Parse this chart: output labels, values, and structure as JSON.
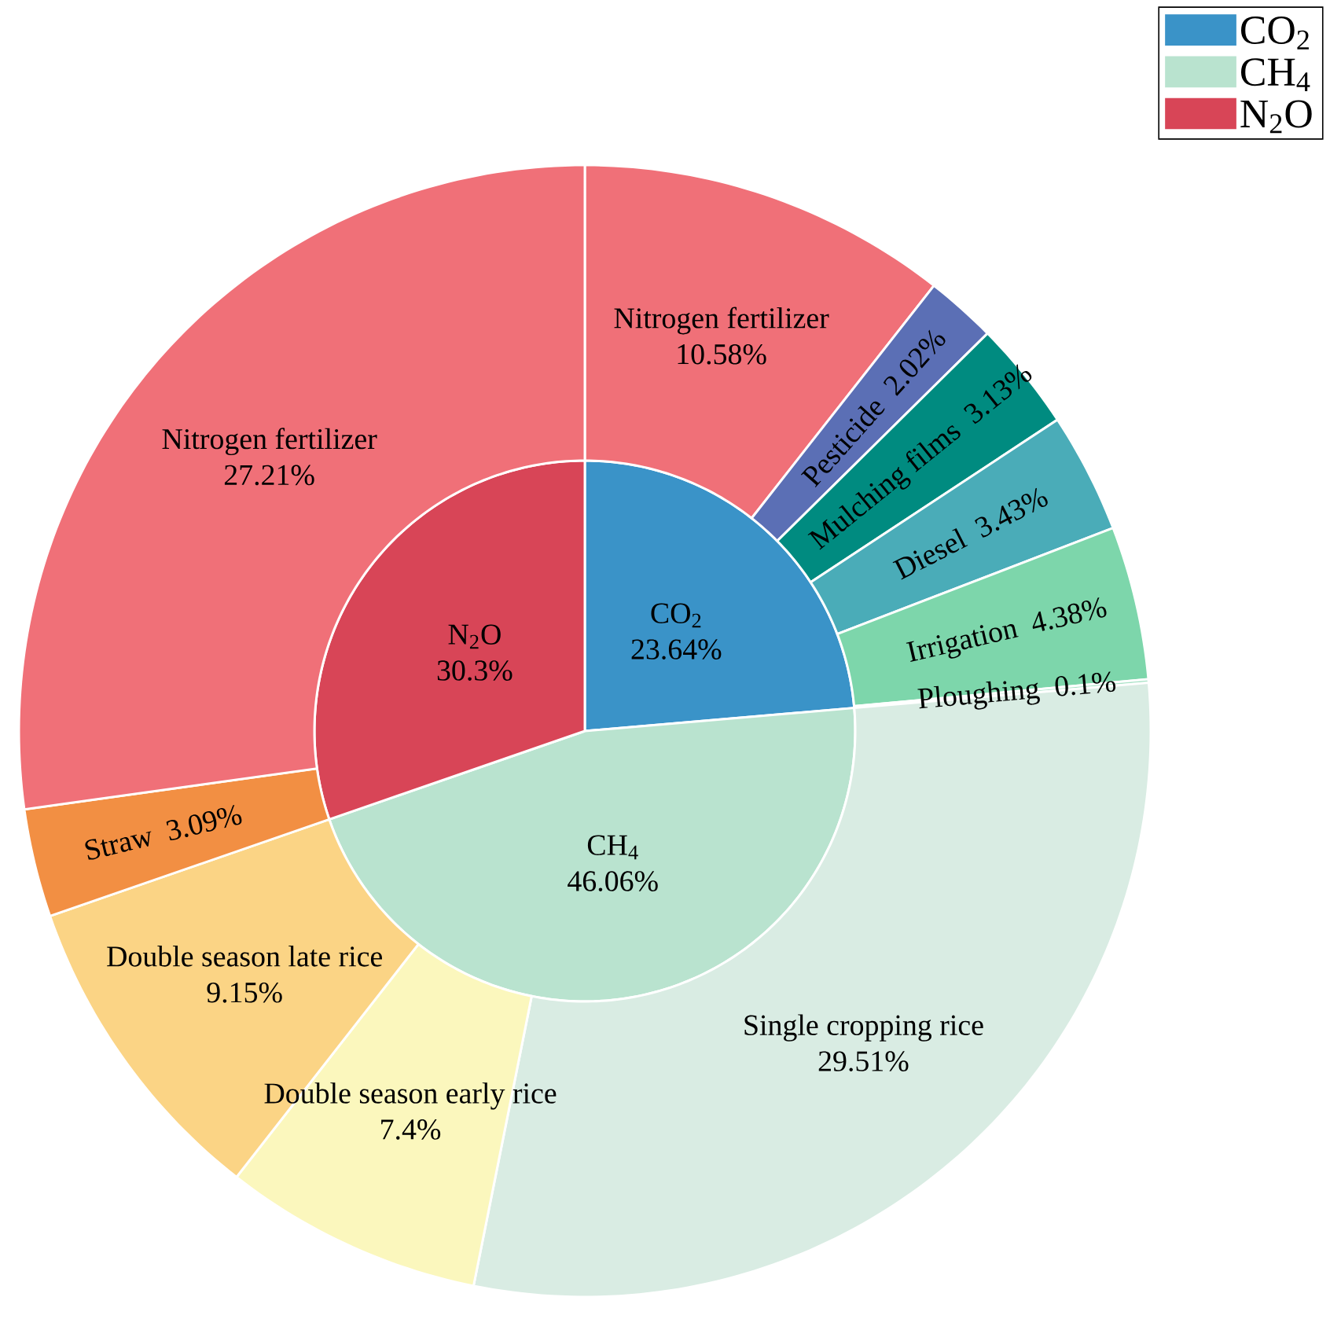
{
  "chart_data": [
    {
      "type": "pie",
      "categories": [
        "CO$_{2}$",
        "CH$_{4}$",
        "N$_{2}$O"
      ],
      "values": [
        23.64,
        46.06,
        30.3
      ],
      "colors": [
        "#3a93c8",
        "#b9e3cf",
        "#d84557"
      ],
      "value_labels": [
        "23.64%",
        "46.06%",
        "30.3%"
      ],
      "legend": "top right"
    },
    {
      "type": "donut",
      "categories": [
        "Nitrogen fertilizer",
        "Pesticide",
        "Mulching films",
        "Diesel",
        "Irrigation",
        "Ploughing",
        "Single cropping rice",
        "Double season early rice",
        "Double season late rice",
        "Straw",
        "Nitrogen fertilizer"
      ],
      "values": [
        10.58,
        2.02,
        3.13,
        3.43,
        4.38,
        0.1,
        29.51,
        7.4,
        9.15,
        3.09,
        27.21
      ],
      "colors": [
        "#f07078",
        "#5b6fb5",
        "#008b80",
        "#4aacb8",
        "#7dd6ab",
        "#a8e2c6",
        "#d9ece3",
        "#fbf7bd",
        "#fbd485",
        "#f28f43",
        "#f07078"
      ],
      "value_labels": [
        "10.58%",
        "2.02%",
        "3.13%",
        "3.43%",
        "4.38%",
        "0.1%",
        "29.51%",
        "7.4%",
        "9.15%",
        "3.09%",
        "27.21%"
      ]
    }
  ]
}
